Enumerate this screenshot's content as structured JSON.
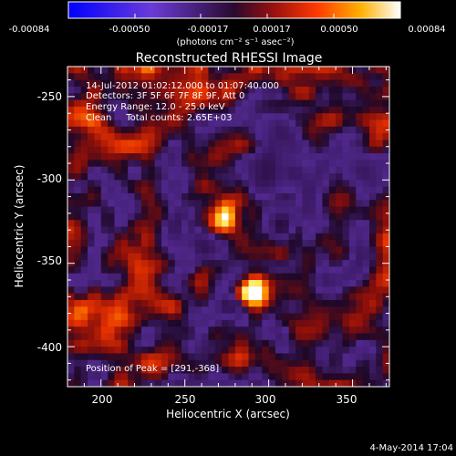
{
  "colorbar": {
    "tick_labels": [
      "-0.00084",
      "-0.00050",
      "-0.00017",
      "0.00017",
      "0.00050",
      "0.00084"
    ],
    "unit_label": "(photons cm⁻² s⁻¹ asec⁻²)",
    "range": [
      -0.00084,
      0.00084
    ]
  },
  "image": {
    "title": "Reconstructed RHESSI Image",
    "info_lines": [
      "14-Jul-2012 01:02:12.000 to 01:07:40.000",
      "Detectors: 3F 5F 6F 7F 8F 9F, Att 0",
      "Energy Range: 12.0 - 25.0 keV",
      "Clean     Total counts: 2.65E+03"
    ],
    "peak_label": "Position of Peak = [291,-368]",
    "peak": [
      291,
      -368
    ]
  },
  "axes": {
    "xlabel": "Heliocentric X (arcsec)",
    "ylabel": "Heliocentric Y (arcsec)",
    "xlim": [
      180,
      372
    ],
    "ylim": [
      -424,
      -232
    ],
    "x_ticks": [
      "200",
      "250",
      "300",
      "350"
    ],
    "y_ticks": [
      "-250",
      "-300",
      "-350",
      "-400"
    ]
  },
  "footer": {
    "date": "4-May-2014 17:04"
  },
  "colors": {
    "background": "#000000",
    "foreground": "#ffffff"
  }
}
